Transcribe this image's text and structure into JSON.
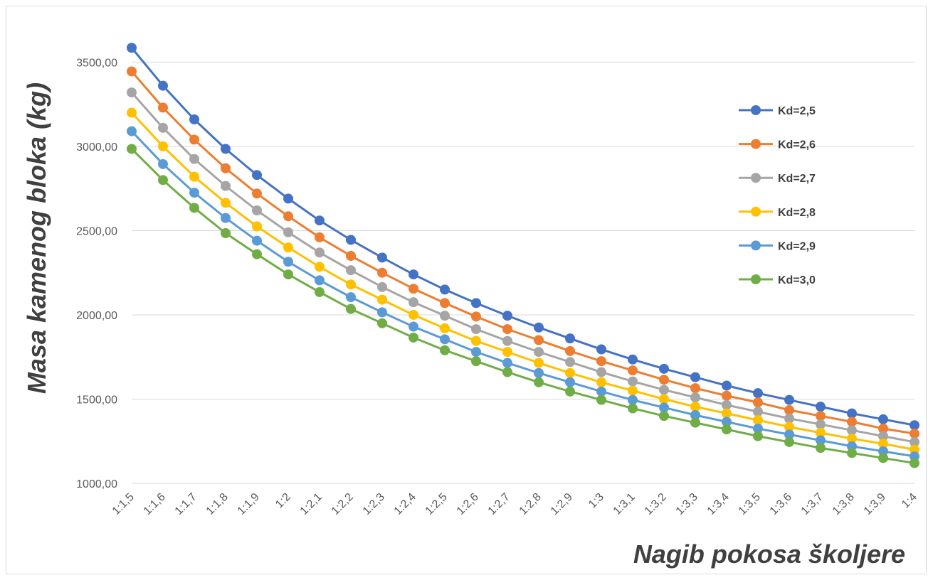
{
  "chart_data": {
    "type": "line",
    "xlabel": "Nagib pokosa školjere",
    "ylabel": "Masa kamenog bloka (kg)",
    "ylim": [
      1000,
      3700
    ],
    "yticks": [
      "1000,00",
      "1500,00",
      "2000,00",
      "2500,00",
      "3000,00",
      "3500,00"
    ],
    "ytick_values": [
      1000,
      1500,
      2000,
      2500,
      3000,
      3500
    ],
    "grid": true,
    "legend_position": "right",
    "categories": [
      "1:1,5",
      "1:1,6",
      "1:1,7",
      "1:1,8",
      "1:1,9",
      "1:2",
      "1:2,1",
      "1:2,2",
      "1:2,3",
      "1:2,4",
      "1:2,5",
      "1:2,6",
      "1:2,7",
      "1:2,8",
      "1:2,9",
      "1:3",
      "1:3,1",
      "1:3,2",
      "1:3,3",
      "1:3,4",
      "1:3,5",
      "1:3,6",
      "1:3,7",
      "1:3,8",
      "1:3,9",
      "1:4"
    ],
    "series": [
      {
        "name": "Kd=2,5",
        "color": "#4472c4",
        "values": [
          3585,
          3360,
          3160,
          2985,
          2830,
          2690,
          2560,
          2445,
          2340,
          2240,
          2150,
          2070,
          1995,
          1925,
          1860,
          1795,
          1735,
          1680,
          1630,
          1580,
          1535,
          1495,
          1455,
          1415,
          1380,
          1345
        ]
      },
      {
        "name": "Kd=2,6",
        "color": "#ed7d31",
        "values": [
          3445,
          3230,
          3040,
          2870,
          2720,
          2585,
          2460,
          2350,
          2250,
          2155,
          2070,
          1990,
          1915,
          1850,
          1785,
          1725,
          1670,
          1615,
          1565,
          1520,
          1480,
          1435,
          1400,
          1365,
          1325,
          1295
        ]
      },
      {
        "name": "Kd=2,7",
        "color": "#a5a5a5",
        "values": [
          3320,
          3110,
          2925,
          2765,
          2620,
          2490,
          2370,
          2265,
          2165,
          2075,
          1995,
          1915,
          1845,
          1780,
          1720,
          1660,
          1605,
          1555,
          1510,
          1465,
          1425,
          1385,
          1350,
          1315,
          1280,
          1245
        ]
      },
      {
        "name": "Kd=2,8",
        "color": "#ffc000",
        "values": [
          3200,
          3000,
          2820,
          2665,
          2525,
          2400,
          2285,
          2180,
          2090,
          2000,
          1920,
          1845,
          1780,
          1715,
          1655,
          1600,
          1550,
          1500,
          1455,
          1415,
          1375,
          1335,
          1300,
          1265,
          1235,
          1200
        ]
      },
      {
        "name": "Kd=2,9",
        "color": "#5b9bd5",
        "values": [
          3090,
          2895,
          2725,
          2575,
          2440,
          2315,
          2205,
          2105,
          2015,
          1930,
          1855,
          1780,
          1715,
          1655,
          1600,
          1545,
          1495,
          1450,
          1405,
          1365,
          1325,
          1290,
          1255,
          1220,
          1190,
          1160
        ]
      },
      {
        "name": "Kd=3,0",
        "color": "#70ad47",
        "values": [
          2985,
          2800,
          2635,
          2485,
          2360,
          2240,
          2135,
          2035,
          1950,
          1865,
          1790,
          1725,
          1660,
          1600,
          1545,
          1495,
          1445,
          1400,
          1360,
          1320,
          1280,
          1245,
          1210,
          1180,
          1150,
          1120
        ]
      }
    ]
  }
}
